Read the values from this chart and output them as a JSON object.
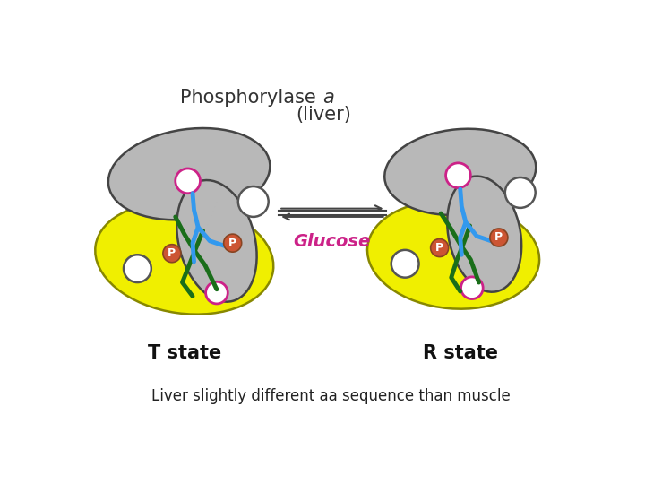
{
  "title_main": "Phosphorylase ",
  "title_italic": "a",
  "title_sub": "(liver)",
  "label_left": "T state",
  "label_right": "R state",
  "label_glucose": "Glucose",
  "caption": "Liver slightly different aa sequence than muscle",
  "bg_color": "#ffffff",
  "gray_color": "#b8b8b8",
  "yellow_color": "#f0ef00",
  "blue_color": "#3399ee",
  "green_color": "#1a6e1a",
  "pink_color": "#cc2288",
  "orange_color": "#cc5533",
  "white_color": "#ffffff",
  "black_color": "#111111",
  "title_color": "#333333",
  "glucose_color": "#cc2288",
  "arrow_color": "#444444"
}
